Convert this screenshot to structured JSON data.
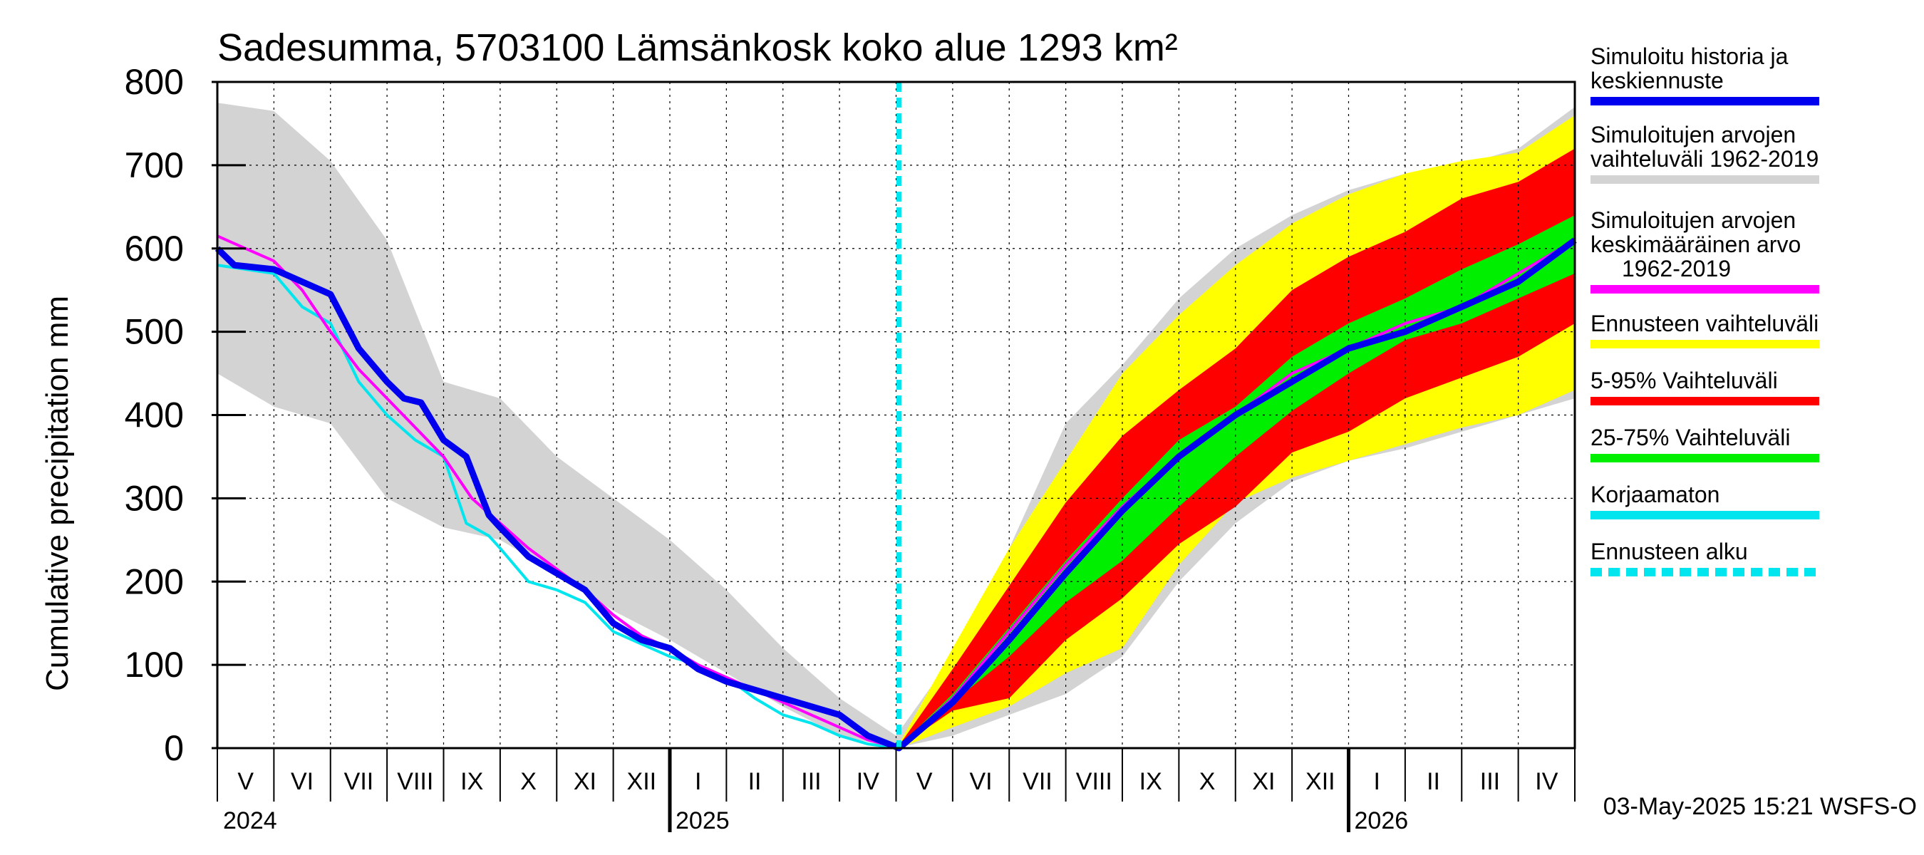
{
  "chart_data": {
    "type": "area",
    "title": "Sadesumma, 5703100 Lämsänkosk koko alue 1293 km²",
    "ylabel": "Cumulative precipitation   mm",
    "xlabel": "",
    "ylim": [
      0,
      800
    ],
    "yticks": [
      0,
      100,
      200,
      300,
      400,
      500,
      600,
      700,
      800
    ],
    "x_unit": "month index from start of May 2024",
    "xlim": [
      0,
      24
    ],
    "forecast_start": 12.05,
    "months": [
      {
        "label": "V",
        "x": 0.5
      },
      {
        "label": "VI",
        "x": 1.5
      },
      {
        "label": "VII",
        "x": 2.5
      },
      {
        "label": "VIII",
        "x": 3.5
      },
      {
        "label": "IX",
        "x": 4.5
      },
      {
        "label": "X",
        "x": 5.5
      },
      {
        "label": "XI",
        "x": 6.5
      },
      {
        "label": "XII",
        "x": 7.5
      },
      {
        "label": "I",
        "x": 8.5
      },
      {
        "label": "II",
        "x": 9.5
      },
      {
        "label": "III",
        "x": 10.5
      },
      {
        "label": "IV",
        "x": 11.5
      },
      {
        "label": "V",
        "x": 12.5
      },
      {
        "label": "VI",
        "x": 13.5
      },
      {
        "label": "VII",
        "x": 14.5
      },
      {
        "label": "VIII",
        "x": 15.5
      },
      {
        "label": "IX",
        "x": 16.5
      },
      {
        "label": "X",
        "x": 17.5
      },
      {
        "label": "XI",
        "x": 18.5
      },
      {
        "label": "XII",
        "x": 19.5
      },
      {
        "label": "I",
        "x": 20.5
      },
      {
        "label": "II",
        "x": 21.5
      },
      {
        "label": "III",
        "x": 22.5
      },
      {
        "label": "IV",
        "x": 23.5
      }
    ],
    "years": [
      {
        "label": "2024",
        "x": 0
      },
      {
        "label": "2025",
        "x": 8
      },
      {
        "label": "2026",
        "x": 20
      }
    ],
    "year_boundaries": [
      8,
      20
    ],
    "series": [
      {
        "name": "Simuloitujen arvojen vaihteluväli 1962-2019",
        "kind": "band",
        "color": "#d3d3d3",
        "x": [
          0,
          1,
          2,
          3,
          4,
          5,
          6,
          7,
          8,
          9,
          10,
          11,
          12,
          13,
          14,
          15,
          16,
          17,
          18,
          19,
          20,
          21,
          22,
          23,
          24
        ],
        "upper": [
          775,
          765,
          705,
          610,
          440,
          420,
          350,
          300,
          250,
          190,
          120,
          60,
          15,
          110,
          240,
          390,
          460,
          540,
          600,
          640,
          670,
          690,
          700,
          720,
          770
        ],
        "lower": [
          450,
          410,
          390,
          300,
          265,
          250,
          210,
          165,
          130,
          90,
          50,
          15,
          0,
          15,
          40,
          65,
          110,
          200,
          270,
          320,
          345,
          360,
          380,
          400,
          420
        ]
      },
      {
        "name": "Ennusteen vaihteluväli",
        "kind": "band",
        "color": "#ffff00",
        "x": [
          12.05,
          13,
          14,
          15,
          16,
          17,
          18,
          19,
          20,
          21,
          22,
          23,
          24
        ],
        "upper": [
          5,
          120,
          240,
          345,
          450,
          520,
          580,
          630,
          665,
          690,
          705,
          715,
          760
        ],
        "lower": [
          0,
          25,
          50,
          90,
          120,
          220,
          295,
          325,
          345,
          365,
          385,
          400,
          430
        ]
      },
      {
        "name": "5-95% Vaihteluväli",
        "kind": "band",
        "color": "#ff0000",
        "x": [
          12.05,
          13,
          14,
          15,
          16,
          17,
          18,
          19,
          20,
          21,
          22,
          23,
          24
        ],
        "upper": [
          3,
          95,
          195,
          295,
          375,
          430,
          480,
          550,
          590,
          620,
          660,
          680,
          720
        ],
        "lower": [
          1,
          45,
          60,
          130,
          180,
          245,
          290,
          355,
          380,
          420,
          445,
          470,
          510
        ]
      },
      {
        "name": "25-75% Vaihteluväli",
        "kind": "band",
        "color": "#00ee00",
        "x": [
          12.05,
          13,
          14,
          15,
          16,
          17,
          18,
          19,
          20,
          21,
          22,
          23,
          24
        ],
        "upper": [
          2,
          65,
          145,
          225,
          300,
          370,
          410,
          470,
          510,
          540,
          575,
          605,
          640
        ],
        "lower": [
          1,
          55,
          110,
          175,
          225,
          290,
          350,
          405,
          450,
          490,
          510,
          540,
          570
        ]
      },
      {
        "name": "Korjaamaton",
        "kind": "line",
        "color": "#00e5ee",
        "x": [
          0,
          0.5,
          1,
          1.5,
          2,
          2.5,
          3,
          3.5,
          4,
          4.4,
          4.8,
          5,
          5.5,
          6,
          6.5,
          7,
          7.5,
          8,
          8.5,
          9,
          9.5,
          10,
          10.5,
          11,
          11.5,
          12.05
        ],
        "values": [
          580,
          575,
          570,
          530,
          510,
          440,
          400,
          370,
          350,
          270,
          255,
          240,
          200,
          190,
          175,
          140,
          125,
          110,
          100,
          85,
          60,
          40,
          30,
          15,
          5,
          0
        ]
      },
      {
        "name": "Simuloitujen arvojen keskimääräinen arvo 1962-2019",
        "kind": "line",
        "color": "#ff00ff",
        "x": [
          0,
          0.5,
          1,
          1.5,
          2,
          2.5,
          3,
          3.5,
          4,
          4.5,
          5,
          5.5,
          6,
          6.5,
          7,
          7.5,
          8,
          8.5,
          9,
          9.5,
          10,
          10.5,
          11,
          11.5,
          12.05,
          13,
          14,
          15,
          16,
          17,
          18,
          19,
          20,
          21,
          22,
          23,
          24
        ],
        "values": [
          615,
          600,
          585,
          550,
          500,
          455,
          420,
          385,
          350,
          300,
          270,
          240,
          215,
          190,
          160,
          135,
          120,
          100,
          85,
          70,
          55,
          40,
          25,
          10,
          0,
          60,
          140,
          220,
          290,
          350,
          400,
          450,
          480,
          510,
          530,
          570,
          610
        ]
      },
      {
        "name": "Simuloitu historia ja keskiennuste",
        "kind": "line",
        "color": "#0000ee",
        "x": [
          0,
          0.3,
          1,
          1.5,
          2,
          2.5,
          3,
          3.3,
          3.6,
          4,
          4.4,
          4.8,
          5,
          5.5,
          6,
          6.5,
          7,
          7.5,
          8,
          8.5,
          9,
          9.5,
          10,
          10.5,
          11,
          11.5,
          12.05,
          13,
          14,
          15,
          16,
          17,
          18,
          19,
          20,
          21,
          22,
          23,
          24
        ],
        "values": [
          600,
          580,
          575,
          560,
          545,
          480,
          440,
          420,
          415,
          370,
          350,
          280,
          265,
          230,
          210,
          190,
          150,
          130,
          120,
          95,
          80,
          70,
          60,
          50,
          40,
          15,
          0,
          55,
          130,
          210,
          285,
          350,
          400,
          440,
          480,
          500,
          530,
          560,
          610
        ]
      }
    ],
    "legend": [
      {
        "label_lines": [
          "Simuloitu historia ja",
          "keskiennuste"
        ],
        "color": "#0000ee",
        "style": "solid"
      },
      {
        "label_lines": [
          "Simuloitujen arvojen",
          "vaihteluväli 1962-2019"
        ],
        "color": "#d3d3d3",
        "style": "solid"
      },
      {
        "label_lines": [
          "Simuloitujen arvojen",
          "keskimääräinen arvo",
          "1962-2019"
        ],
        "color": "#ff00ff",
        "style": "solid"
      },
      {
        "label_lines": [
          "Ennusteen vaihteluväli"
        ],
        "color": "#ffff00",
        "style": "solid"
      },
      {
        "label_lines": [
          "5-95% Vaihteluväli"
        ],
        "color": "#ff0000",
        "style": "solid"
      },
      {
        "label_lines": [
          "25-75% Vaihteluväli"
        ],
        "color": "#00ee00",
        "style": "solid"
      },
      {
        "label_lines": [
          "Korjaamaton"
        ],
        "color": "#00e5ee",
        "style": "solid"
      },
      {
        "label_lines": [
          "Ennusteen alku"
        ],
        "color": "#00e5ee",
        "style": "dashed"
      }
    ],
    "legend_position": "right",
    "footer": "03-May-2025 15:21 WSFS-O",
    "grid": true
  }
}
